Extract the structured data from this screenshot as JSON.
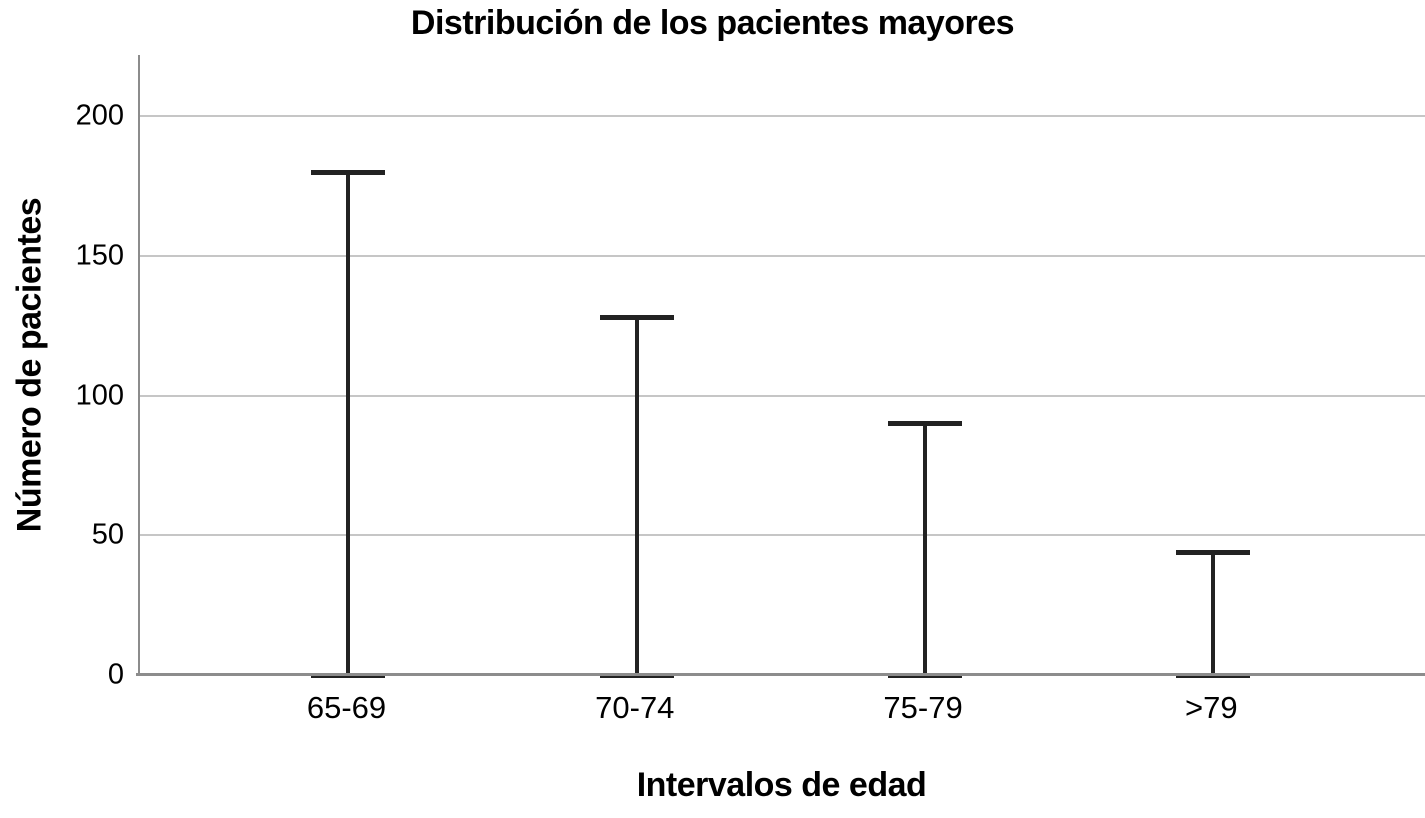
{
  "chart_data": {
    "type": "bar",
    "variant": "range-bar (I-beam error-bar style, SPSS output)",
    "title": "Distribución de los pacientes mayores",
    "xlabel": "Intervalos de edad",
    "ylabel": "Número de pacientes",
    "categories": [
      "65-69",
      "70-74",
      "75-79",
      ">79"
    ],
    "values": [
      180,
      128,
      90,
      44
    ],
    "yticks": [
      0,
      50,
      100,
      150,
      200
    ],
    "ylim": [
      0,
      222
    ],
    "grid": "horizontal gridlines at each y tick",
    "legend": "none",
    "colors": {
      "bar": "#222222",
      "gridline": "#c6c6c6",
      "axis": "#8c8c8c",
      "text": "#000000",
      "background": "#ffffff"
    }
  }
}
